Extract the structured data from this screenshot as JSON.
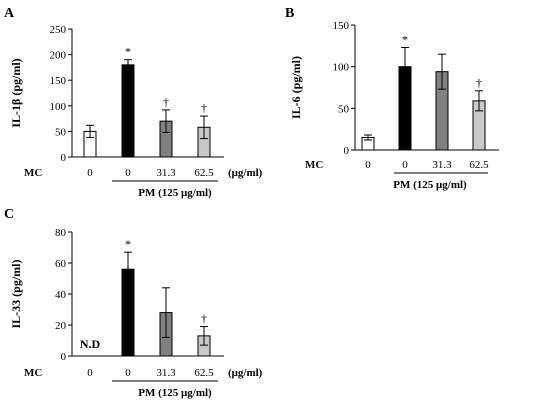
{
  "chart_data": [
    {
      "type": "bar",
      "panel": "A",
      "ylabel": "IL-1β (pg/ml)",
      "ylim": [
        0,
        250
      ],
      "yticks": [
        0,
        50,
        100,
        150,
        200,
        250
      ],
      "row_label": "MC",
      "categories": [
        "0",
        "0",
        "31.3",
        "62.5"
      ],
      "unit": "(μg/ml)",
      "group_label": "PM (125 μg/ml)",
      "values": [
        50,
        180,
        70,
        58
      ],
      "errors": [
        12,
        10,
        22,
        22
      ],
      "significance": [
        "",
        "*",
        "†",
        "†"
      ],
      "bar_colors": [
        "#ffffff",
        "#000000",
        "#808080",
        "#c8c8c8"
      ]
    },
    {
      "type": "bar",
      "panel": "B",
      "ylabel": "IL-6 (pg/ml)",
      "ylim": [
        0,
        150
      ],
      "yticks": [
        0,
        50,
        100,
        150
      ],
      "row_label": "MC",
      "categories": [
        "0",
        "0",
        "31.3",
        "62.5"
      ],
      "unit": "(μg/ml)",
      "group_label": "PM (125 μg/ml)",
      "values": [
        15,
        100,
        94,
        59
      ],
      "errors": [
        3,
        23,
        21,
        12
      ],
      "significance": [
        "",
        "*",
        "",
        "†"
      ],
      "bar_colors": [
        "#ffffff",
        "#000000",
        "#808080",
        "#c8c8c8"
      ]
    },
    {
      "type": "bar",
      "panel": "C",
      "ylabel": "IL-33 (pg/ml)",
      "ylim": [
        0,
        80
      ],
      "yticks": [
        0,
        20,
        40,
        60,
        80
      ],
      "row_label": "MC",
      "categories": [
        "0",
        "0",
        "31.3",
        "62.5"
      ],
      "unit": "(μg/ml)",
      "group_label": "PM (125 μg/ml)",
      "values": [
        null,
        56,
        28,
        13
      ],
      "errors": [
        0,
        11,
        16,
        6
      ],
      "significance": [
        "",
        "*",
        "",
        "†"
      ],
      "bar_colors": [
        "#ffffff",
        "#000000",
        "#808080",
        "#c8c8c8"
      ],
      "bar_annotations": [
        "N.D",
        "",
        "",
        ""
      ]
    }
  ]
}
